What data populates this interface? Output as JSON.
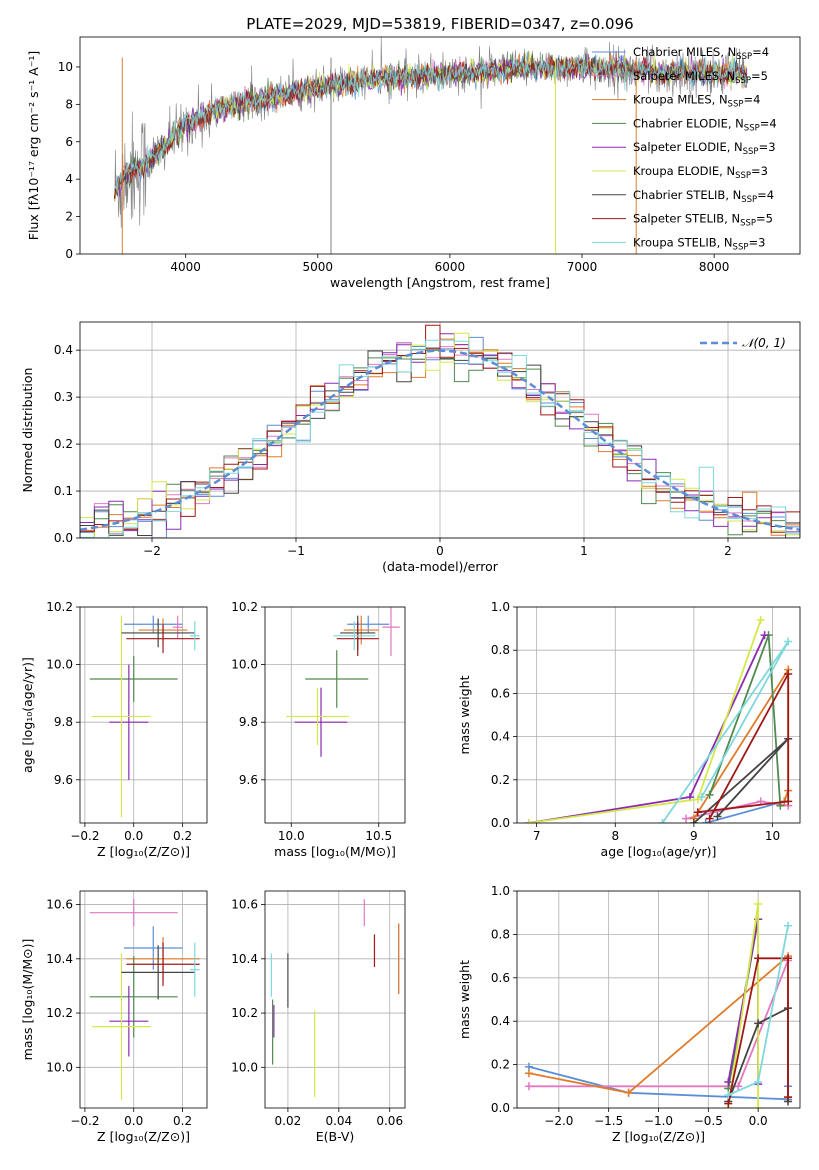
{
  "title": "PLATE=2029, MJD=53819, FIBERID=0347, z=0.096",
  "legend_entries": [
    {
      "label": "Chabrier MILES, N",
      "sub": "SSP",
      "suffix": "=4",
      "color": "#5b8ed6"
    },
    {
      "label": "Salpeter MILES, N",
      "sub": "SSP",
      "suffix": "=5",
      "color": "#e377c2"
    },
    {
      "label": "Kroupa MILES, N",
      "sub": "SSP",
      "suffix": "=4",
      "color": "#e07b2a"
    },
    {
      "label": "Chabrier ELODIE, N",
      "sub": "SSP",
      "suffix": "=4",
      "color": "#4f8a4f"
    },
    {
      "label": "Salpeter ELODIE, N",
      "sub": "SSP",
      "suffix": "=3",
      "color": "#8a2bb0"
    },
    {
      "label": "Kroupa ELODIE, N",
      "sub": "SSP",
      "suffix": "=3",
      "color": "#d4e84a"
    },
    {
      "label": "Chabrier STELIB, N",
      "sub": "SSP",
      "suffix": "=4",
      "color": "#444444"
    },
    {
      "label": "Salpeter STELIB, N",
      "sub": "SSP",
      "suffix": "=5",
      "color": "#a01818"
    },
    {
      "label": "Kroupa STELIB, N",
      "sub": "SSP",
      "suffix": "=3",
      "color": "#7fd8dc"
    }
  ],
  "chart_data": [
    {
      "id": "spectrum",
      "type": "line",
      "xlabel": "wavelength [Angstrom, rest frame]",
      "ylabel": "Flux [fλ10⁻¹⁷ erg cm⁻² s⁻¹ A⁻¹]",
      "xlim": [
        3200,
        8650
      ],
      "ylim": [
        0,
        11.6
      ],
      "xticks": [
        4000,
        5000,
        6000,
        7000,
        8000
      ],
      "yticks": [
        0,
        2,
        4,
        6,
        8,
        10
      ],
      "model_curve": {
        "x": [
          3460,
          3550,
          3700,
          3850,
          4000,
          4200,
          4500,
          5000,
          5500,
          6000,
          6500,
          7000,
          7400,
          7800,
          8250
        ],
        "y": [
          3.3,
          4.3,
          4.8,
          5.8,
          6.9,
          7.6,
          8.2,
          8.9,
          9.4,
          9.6,
          9.9,
          10.0,
          9.8,
          9.7,
          9.6
        ]
      },
      "data_color": "#808080",
      "vertical_lines": [
        {
          "x": 3520,
          "color": "#e07b2a"
        },
        {
          "x": 5100,
          "color": "#808080"
        },
        {
          "x": 6800,
          "color": "#d4e84a"
        },
        {
          "x": 7410,
          "color": "#e07b2a"
        }
      ]
    },
    {
      "id": "residuals",
      "type": "histogram",
      "xlabel": "(data-model)/error",
      "ylabel": "Normed distribution",
      "xlim": [
        -2.5,
        2.5
      ],
      "ylim": [
        0,
        0.46
      ],
      "xticks": [
        -2,
        -1,
        0,
        1,
        2
      ],
      "yticks": [
        0.0,
        0.1,
        0.2,
        0.3,
        0.4
      ],
      "reference": {
        "name": "N(0,1)",
        "legend": "𝒩(0, 1)",
        "color": "#5b8ed6"
      },
      "bin_width": 0.1
    },
    {
      "id": "age_vs_Z",
      "type": "errorbar",
      "xlabel": "Z [log₁₀(Z/Z⊙)]",
      "ylabel": "age  [log₁₀(age/yr)]",
      "xlim": [
        -0.22,
        0.3
      ],
      "ylim": [
        9.45,
        10.2
      ],
      "xticks": [
        -0.2,
        0.0,
        0.2
      ],
      "yticks": [
        9.6,
        9.8,
        10.0,
        10.2
      ],
      "points": [
        {
          "x": 0.08,
          "xerr": 0.12,
          "y": 10.14,
          "yerr": 0.03,
          "color": "#5b8ed6"
        },
        {
          "x": 0.18,
          "xerr": 0.02,
          "y": 10.13,
          "yerr": 0.04,
          "color": "#e377c2"
        },
        {
          "x": 0.12,
          "xerr": 0.1,
          "y": 10.12,
          "yerr": 0.04,
          "color": "#e07b2a"
        },
        {
          "x": 0.0,
          "xerr": 0.18,
          "y": 9.95,
          "yerr": 0.08,
          "color": "#4f8a4f"
        },
        {
          "x": -0.02,
          "xerr": 0.08,
          "y": 9.8,
          "yerr": 0.2,
          "color": "#8a2bb0"
        },
        {
          "x": -0.05,
          "xerr": 0.12,
          "y": 9.82,
          "yerr": 0.35,
          "color": "#d4e84a"
        },
        {
          "x": 0.1,
          "xerr": 0.15,
          "y": 10.11,
          "yerr": 0.05,
          "color": "#444444"
        },
        {
          "x": 0.12,
          "xerr": 0.15,
          "y": 10.09,
          "yerr": 0.05,
          "color": "#a01818"
        },
        {
          "x": 0.25,
          "xerr": 0.02,
          "y": 10.1,
          "yerr": 0.05,
          "color": "#7fd8dc"
        }
      ]
    },
    {
      "id": "age_vs_mass",
      "type": "errorbar",
      "xlabel": "mass [log₁₀(M/M⊙)]",
      "ylabel": "",
      "xlim": [
        9.85,
        10.65
      ],
      "ylim": [
        9.45,
        10.2
      ],
      "xticks": [
        10.0,
        10.5
      ],
      "yticks": [
        9.6,
        9.8,
        10.0,
        10.2
      ],
      "points": [
        {
          "x": 10.44,
          "xerr": 0.12,
          "y": 10.14,
          "yerr": 0.03,
          "color": "#5b8ed6"
        },
        {
          "x": 10.57,
          "xerr": 0.05,
          "y": 10.13,
          "yerr": 0.1,
          "color": "#e377c2"
        },
        {
          "x": 10.4,
          "xerr": 0.1,
          "y": 10.12,
          "yerr": 0.05,
          "color": "#e07b2a"
        },
        {
          "x": 10.26,
          "xerr": 0.18,
          "y": 9.95,
          "yerr": 0.1,
          "color": "#4f8a4f"
        },
        {
          "x": 10.17,
          "xerr": 0.15,
          "y": 9.8,
          "yerr": 0.12,
          "color": "#8a2bb0"
        },
        {
          "x": 10.15,
          "xerr": 0.18,
          "y": 9.82,
          "yerr": 0.1,
          "color": "#d4e84a"
        },
        {
          "x": 10.38,
          "xerr": 0.1,
          "y": 10.11,
          "yerr": 0.06,
          "color": "#444444"
        },
        {
          "x": 10.38,
          "xerr": 0.12,
          "y": 10.09,
          "yerr": 0.06,
          "color": "#a01818"
        },
        {
          "x": 10.36,
          "xerr": 0.12,
          "y": 10.1,
          "yerr": 0.05,
          "color": "#7fd8dc"
        }
      ]
    },
    {
      "id": "weight_vs_age",
      "type": "line",
      "xlabel": "age  [log₁₀(age/yr)]",
      "ylabel": "mass weight",
      "xlim": [
        6.75,
        10.35
      ],
      "ylim": [
        0,
        1.0
      ],
      "xticks": [
        7,
        8,
        9,
        10
      ],
      "yticks": [
        0.0,
        0.2,
        0.4,
        0.6,
        0.8,
        1.0
      ],
      "series": [
        {
          "color": "#5b8ed6",
          "x": [
            9.15,
            10.15
          ],
          "y": [
            0.0,
            0.1
          ]
        },
        {
          "color": "#e377c2",
          "x": [
            8.9,
            9.85,
            10.2
          ],
          "y": [
            0.02,
            0.1,
            0.08
          ]
        },
        {
          "color": "#e07b2a",
          "x": [
            9.0,
            10.2,
            10.2,
            10.15
          ],
          "y": [
            0.02,
            0.71,
            0.15,
            0.1
          ]
        },
        {
          "color": "#4f8a4f",
          "x": [
            9.2,
            9.95,
            10.1
          ],
          "y": [
            0.13,
            0.87,
            0.08
          ]
        },
        {
          "color": "#8a2bb0",
          "x": [
            6.9,
            8.95,
            9.9
          ],
          "y": [
            0.0,
            0.12,
            0.87
          ]
        },
        {
          "color": "#d4e84a",
          "x": [
            6.9,
            9.05,
            9.85
          ],
          "y": [
            0.0,
            0.11,
            0.94
          ]
        },
        {
          "color": "#444444",
          "x": [
            9.3,
            10.2,
            9.0
          ],
          "y": [
            0.03,
            0.39,
            0.0
          ]
        },
        {
          "color": "#a01818",
          "x": [
            9.2,
            10.2,
            10.2,
            9.05
          ],
          "y": [
            0.02,
            0.69,
            0.1,
            0.05
          ]
        },
        {
          "color": "#7fd8dc",
          "x": [
            9.1,
            10.2,
            8.6
          ],
          "y": [
            0.12,
            0.84,
            0.0
          ]
        }
      ]
    },
    {
      "id": "mass_vs_Z",
      "type": "errorbar",
      "xlabel": "Z [log₁₀(Z/Z⊙)]",
      "ylabel": "mass [log₁₀(M/M⊙)]",
      "xlim": [
        -0.22,
        0.3
      ],
      "ylim": [
        9.85,
        10.65
      ],
      "xticks": [
        -0.2,
        0.0,
        0.2
      ],
      "yticks": [
        10.0,
        10.2,
        10.4,
        10.6
      ],
      "points": [
        {
          "x": 0.08,
          "xerr": 0.12,
          "y": 10.44,
          "yerr": 0.08,
          "color": "#5b8ed6"
        },
        {
          "x": 0.0,
          "xerr": 0.18,
          "y": 10.57,
          "yerr": 0.05,
          "color": "#e377c2"
        },
        {
          "x": 0.12,
          "xerr": 0.15,
          "y": 10.4,
          "yerr": 0.08,
          "color": "#e07b2a"
        },
        {
          "x": 0.0,
          "xerr": 0.18,
          "y": 10.26,
          "yerr": 0.15,
          "color": "#4f8a4f"
        },
        {
          "x": -0.02,
          "xerr": 0.08,
          "y": 10.17,
          "yerr": 0.13,
          "color": "#8a2bb0"
        },
        {
          "x": -0.05,
          "xerr": 0.12,
          "y": 10.15,
          "yerr": 0.27,
          "color": "#d4e84a"
        },
        {
          "x": 0.1,
          "xerr": 0.15,
          "y": 10.35,
          "yerr": 0.1,
          "color": "#444444"
        },
        {
          "x": 0.12,
          "xerr": 0.15,
          "y": 10.38,
          "yerr": 0.08,
          "color": "#a01818"
        },
        {
          "x": 0.25,
          "xerr": 0.02,
          "y": 10.36,
          "yerr": 0.1,
          "color": "#7fd8dc"
        }
      ]
    },
    {
      "id": "mass_vs_ebv",
      "type": "errorbar",
      "xlabel": "E(B-V)",
      "ylabel": "",
      "xlim": [
        0.011,
        0.066
      ],
      "ylim": [
        9.85,
        10.65
      ],
      "xticks": [
        0.02,
        0.04,
        0.06
      ],
      "yticks": [
        10.0,
        10.2,
        10.4,
        10.6
      ],
      "points": [
        {
          "x": 0.0635,
          "yerr": 0.13,
          "y": 10.4,
          "color": "#5b8ed6"
        },
        {
          "x": 0.05,
          "yerr": 0.05,
          "y": 10.57,
          "color": "#e377c2"
        },
        {
          "x": 0.0635,
          "yerr": 0.13,
          "y": 10.4,
          "color": "#e07b2a"
        },
        {
          "x": 0.014,
          "yerr": 0.12,
          "y": 10.13,
          "color": "#4f8a4f"
        },
        {
          "x": 0.0145,
          "yerr": 0.06,
          "y": 10.17,
          "color": "#8a2bb0"
        },
        {
          "x": 0.0305,
          "yerr": 0.16,
          "y": 10.05,
          "color": "#d4e84a"
        },
        {
          "x": 0.02,
          "yerr": 0.1,
          "y": 10.32,
          "color": "#444444"
        },
        {
          "x": 0.054,
          "yerr": 0.06,
          "y": 10.43,
          "color": "#a01818"
        },
        {
          "x": 0.0135,
          "yerr": 0.08,
          "y": 10.34,
          "color": "#7fd8dc"
        }
      ]
    },
    {
      "id": "weight_vs_Z",
      "type": "line",
      "xlabel": "Z [log₁₀(Z/Z⊙)]",
      "ylabel": "mass weight",
      "xlim": [
        -2.42,
        0.42
      ],
      "ylim": [
        0,
        1.0
      ],
      "xticks": [
        -2.0,
        -1.5,
        -1.0,
        -0.5,
        0.0
      ],
      "yticks": [
        0.0,
        0.2,
        0.4,
        0.6,
        0.8,
        1.0
      ],
      "series": [
        {
          "color": "#5b8ed6",
          "x": [
            -2.3,
            -1.3,
            0.3,
            0.3
          ],
          "y": [
            0.19,
            0.07,
            0.04,
            0.1
          ]
        },
        {
          "color": "#e377c2",
          "x": [
            -2.3,
            -0.2,
            0.3
          ],
          "y": [
            0.1,
            0.1,
            0.68
          ]
        },
        {
          "color": "#e07b2a",
          "x": [
            -2.3,
            -1.3,
            0.3,
            0.3
          ],
          "y": [
            0.16,
            0.07,
            0.7,
            0.05
          ]
        },
        {
          "color": "#4f8a4f",
          "x": [
            -0.3,
            0.0
          ],
          "y": [
            0.09,
            0.87
          ]
        },
        {
          "color": "#8a2bb0",
          "x": [
            -0.3,
            0.0,
            0.0
          ],
          "y": [
            0.12,
            0.87,
            0.11
          ]
        },
        {
          "color": "#d4e84a",
          "x": [
            -0.3,
            0.0,
            0.0
          ],
          "y": [
            0.0,
            0.94,
            0.0
          ]
        },
        {
          "color": "#444444",
          "x": [
            -0.3,
            0.0,
            0.3,
            0.3
          ],
          "y": [
            0.03,
            0.39,
            0.46,
            0.03
          ]
        },
        {
          "color": "#a01818",
          "x": [
            -0.3,
            0.0,
            0.3,
            0.3
          ],
          "y": [
            0.02,
            0.69,
            0.69,
            0.05
          ]
        },
        {
          "color": "#7fd8dc",
          "x": [
            -0.3,
            0.0,
            0.3
          ],
          "y": [
            0.06,
            0.12,
            0.84
          ]
        }
      ]
    }
  ]
}
